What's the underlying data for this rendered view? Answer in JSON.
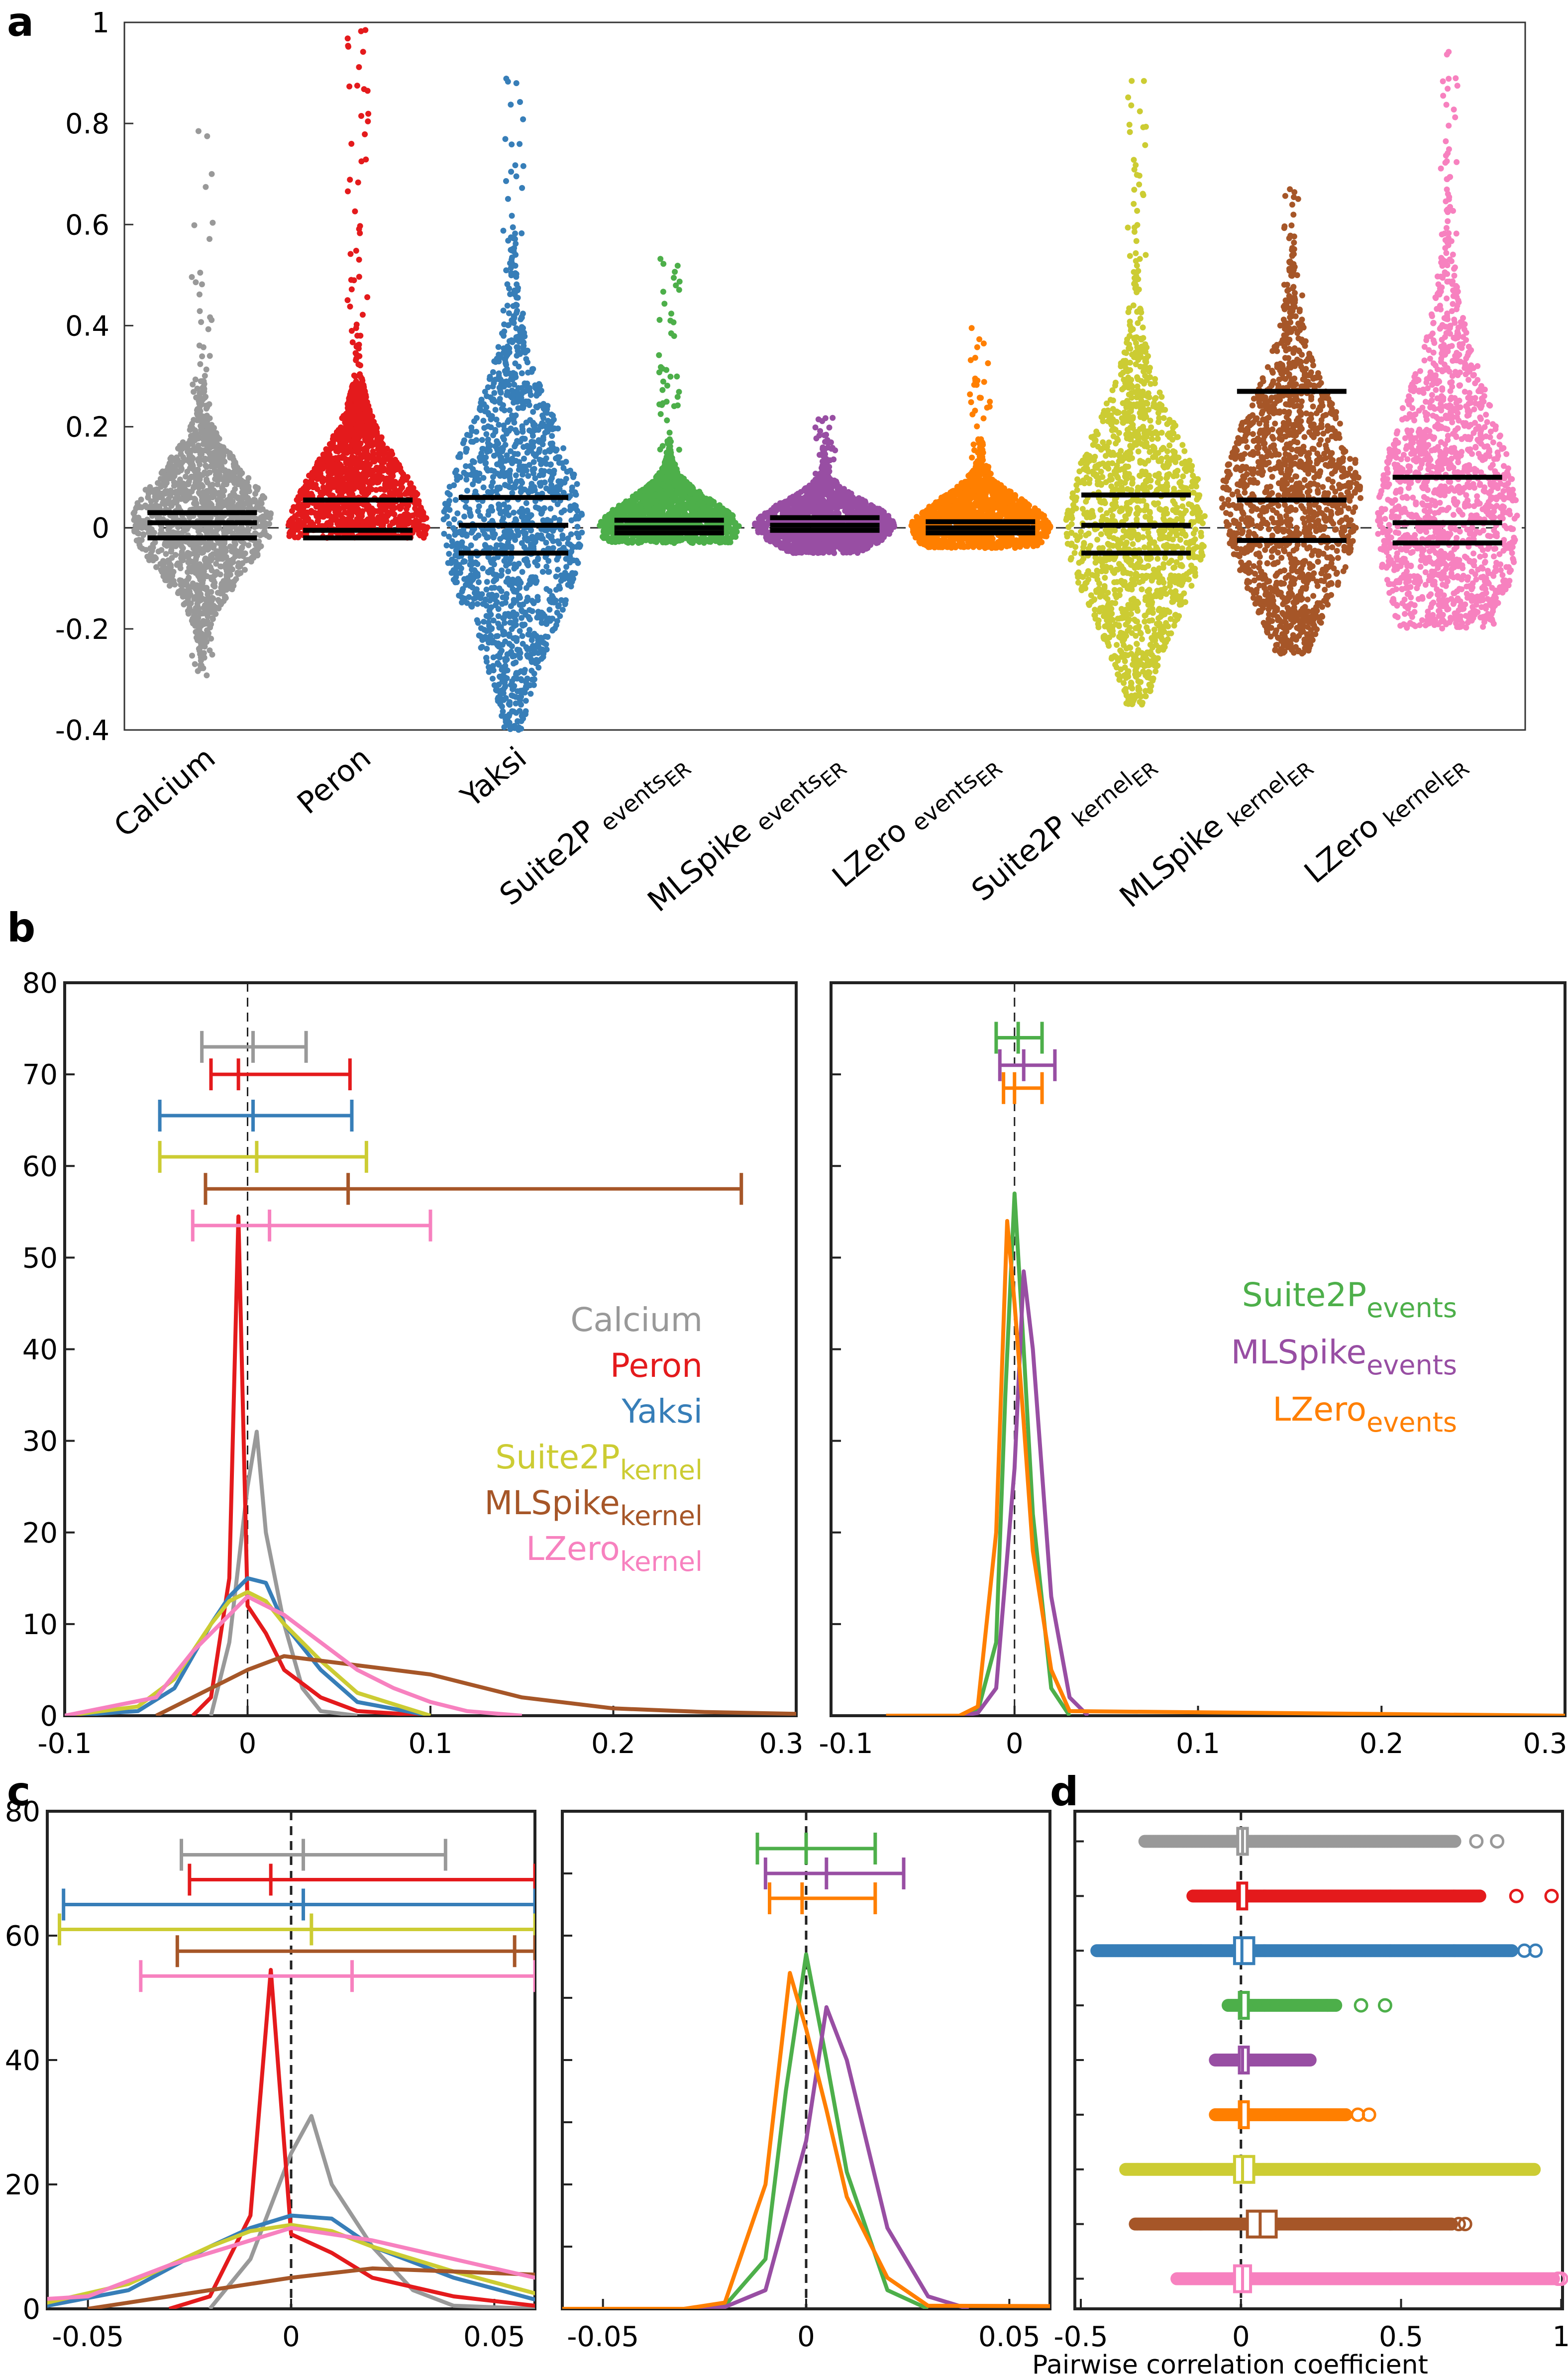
{
  "figure": {
    "panel_labels": [
      "a",
      "b",
      "c",
      "d"
    ],
    "xlabel_d": "Pairwise correlation coefficient"
  },
  "colors": {
    "Calcium": "#999999",
    "Peron": "#e41a1c",
    "Yaksi": "#377eb8",
    "Suite2P_events": "#4daf4a",
    "MLSpike_events": "#984ea3",
    "LZero_events": "#ff7f00",
    "Suite2P_kernel": "#cccc33",
    "MLSpike_kernel": "#a65628",
    "LZero_kernel": "#f781bf"
  },
  "chart_data": [
    {
      "panel": "a",
      "type": "scatter",
      "title": "",
      "xlabel": "",
      "ylabel": "",
      "ylim": [
        -0.4,
        1
      ],
      "yticks": [
        -0.4,
        -0.2,
        0,
        0.2,
        0.4,
        0.6,
        0.8,
        1
      ],
      "yticklabels": [
        "-0.4",
        "-0.2",
        "0",
        "0.2",
        "0.4",
        "0.6",
        "0.8",
        "1"
      ],
      "categories": [
        {
          "key": "Calcium",
          "base": "Calcium",
          "sub": "",
          "min": -0.3,
          "max": 0.8,
          "spread": 0.11,
          "p25": -0.02,
          "median": 0.01,
          "p75": 0.03
        },
        {
          "key": "Peron",
          "base": "Peron",
          "sub": "",
          "min": -0.02,
          "max": 1.0,
          "spread": 0.14,
          "p25": -0.02,
          "median": -0.005,
          "p75": 0.055
        },
        {
          "key": "Yaksi",
          "base": "Yaksi",
          "sub": "",
          "min": -0.4,
          "max": 0.9,
          "spread": 0.22,
          "p25": -0.05,
          "median": 0.005,
          "p75": 0.06
        },
        {
          "key": "Suite2P_events",
          "base": "Suite2P ",
          "sub": "events",
          "sub2": "ER",
          "min": -0.03,
          "max": 0.55,
          "spread": 0.06,
          "p25": -0.01,
          "median": 0.0,
          "p75": 0.015
        },
        {
          "key": "MLSpike_events",
          "base": "MLSpike ",
          "sub": "events",
          "sub2": "ER",
          "min": -0.05,
          "max": 0.22,
          "spread": 0.05,
          "p25": -0.005,
          "median": 0.005,
          "p75": 0.02
        },
        {
          "key": "LZero_events",
          "base": "LZero ",
          "sub": "events",
          "sub2": "ER",
          "min": -0.04,
          "max": 0.4,
          "spread": 0.06,
          "p25": -0.01,
          "median": 0.0,
          "p75": 0.012
        },
        {
          "key": "Suite2P_kernel",
          "base": "Suite2P ",
          "sub": "kernel",
          "sub2": "ER",
          "min": -0.35,
          "max": 0.92,
          "spread": 0.2,
          "p25": -0.05,
          "median": 0.005,
          "p75": 0.065
        },
        {
          "key": "MLSpike_kernel",
          "base": "MLSpike ",
          "sub": "kernel",
          "sub2": "ER",
          "min": -0.25,
          "max": 0.7,
          "spread": 0.2,
          "p25": -0.025,
          "median": 0.055,
          "p75": 0.27
        },
        {
          "key": "LZero_kernel",
          "base": "LZero ",
          "sub": "kernel",
          "sub2": "ER",
          "min": -0.2,
          "max": 1.0,
          "spread": 0.26,
          "p25": -0.03,
          "median": 0.01,
          "p75": 0.1
        }
      ],
      "reference_line_y": 0
    },
    {
      "panel": "b-left",
      "type": "line",
      "xlim": [
        -0.1,
        0.3
      ],
      "ylim": [
        0,
        80
      ],
      "xticks": [
        -0.1,
        0,
        0.1,
        0.2,
        0.3
      ],
      "xticklabels": [
        "-0.1",
        "0",
        "0.1",
        "0.2",
        "0.3"
      ],
      "yticks": [
        0,
        10,
        20,
        30,
        40,
        50,
        60,
        70,
        80
      ],
      "yticklabels": [
        "0",
        "10",
        "20",
        "30",
        "40",
        "50",
        "60",
        "70",
        "80"
      ],
      "reference_line_x": 0,
      "legend": [
        {
          "key": "Calcium",
          "text": "Calcium",
          "sub": ""
        },
        {
          "key": "Peron",
          "text": "Peron",
          "sub": ""
        },
        {
          "key": "Yaksi",
          "text": "Yaksi",
          "sub": ""
        },
        {
          "key": "Suite2P_kernel",
          "text": "Suite2P",
          "sub": "kernel"
        },
        {
          "key": "MLSpike_kernel",
          "text": "MLSpike",
          "sub": "kernel"
        },
        {
          "key": "LZero_kernel",
          "text": "LZero",
          "sub": "kernel"
        }
      ],
      "series": [
        {
          "key": "Calcium",
          "x": [
            -0.02,
            -0.01,
            0,
            0.005,
            0.01,
            0.02,
            0.03,
            0.04,
            0.06
          ],
          "y": [
            0,
            8,
            25,
            31,
            20,
            10,
            3,
            0.5,
            0
          ]
        },
        {
          "key": "Peron",
          "x": [
            -0.03,
            -0.02,
            -0.01,
            -0.005,
            0,
            0.01,
            0.02,
            0.04,
            0.06,
            0.1
          ],
          "y": [
            0,
            2,
            15,
            54.5,
            12,
            9,
            5,
            2,
            0.5,
            0
          ]
        },
        {
          "key": "Yaksi",
          "x": [
            -0.1,
            -0.06,
            -0.04,
            -0.02,
            -0.01,
            0,
            0.01,
            0.02,
            0.04,
            0.06,
            0.1
          ],
          "y": [
            0,
            0.5,
            3,
            10,
            13,
            15,
            14.5,
            10,
            5,
            1.5,
            0
          ]
        },
        {
          "key": "Suite2P_kernel",
          "x": [
            -0.1,
            -0.06,
            -0.04,
            -0.02,
            -0.01,
            0,
            0.01,
            0.02,
            0.04,
            0.06,
            0.1
          ],
          "y": [
            0,
            1,
            4,
            10,
            12.5,
            13.5,
            12.5,
            10,
            6,
            2.5,
            0
          ]
        },
        {
          "key": "MLSpike_kernel",
          "x": [
            -0.05,
            -0.02,
            0,
            0.02,
            0.04,
            0.06,
            0.08,
            0.1,
            0.12,
            0.15,
            0.2,
            0.25,
            0.3
          ],
          "y": [
            0,
            3,
            5,
            6.5,
            6,
            5.5,
            5,
            4.5,
            3.5,
            2,
            0.8,
            0.4,
            0.2
          ]
        },
        {
          "key": "LZero_kernel",
          "x": [
            -0.1,
            -0.05,
            -0.03,
            -0.01,
            0,
            0.01,
            0.02,
            0.04,
            0.06,
            0.08,
            0.1,
            0.12,
            0.15
          ],
          "y": [
            0,
            2,
            7,
            11,
            13,
            12,
            11,
            8,
            5,
            3,
            1.5,
            0.5,
            0
          ]
        }
      ],
      "error_bars": [
        {
          "key": "Calcium",
          "row": 73,
          "low": -0.025,
          "mid": 0.003,
          "high": 0.032
        },
        {
          "key": "Peron",
          "row": 70,
          "low": -0.02,
          "mid": -0.005,
          "high": 0.056
        },
        {
          "key": "Yaksi",
          "row": 65.5,
          "low": -0.048,
          "mid": 0.003,
          "high": 0.057
        },
        {
          "key": "Suite2P_kernel",
          "row": 61,
          "low": -0.048,
          "mid": 0.005,
          "high": 0.065
        },
        {
          "key": "MLSpike_kernel",
          "row": 57.5,
          "low": -0.023,
          "mid": 0.055,
          "high": 0.27
        },
        {
          "key": "LZero_kernel",
          "row": 53.5,
          "low": -0.03,
          "mid": 0.012,
          "high": 0.1
        }
      ]
    },
    {
      "panel": "b-right",
      "type": "line",
      "xlim": [
        -0.1,
        0.3
      ],
      "ylim": [
        0,
        80
      ],
      "xticks": [
        -0.1,
        0,
        0.1,
        0.2,
        0.3
      ],
      "xticklabels": [
        "-0.1",
        "0",
        "0.1",
        "0.2",
        "0.3"
      ],
      "reference_line_x": 0,
      "legend": [
        {
          "key": "Suite2P_events",
          "text": "Suite2P",
          "sub": "events"
        },
        {
          "key": "MLSpike_events",
          "text": "MLSpike",
          "sub": "events"
        },
        {
          "key": "LZero_events",
          "text": "LZero",
          "sub": "events"
        }
      ],
      "series": [
        {
          "key": "Suite2P_events",
          "x": [
            -0.03,
            -0.02,
            -0.01,
            -0.005,
            0,
            0.005,
            0.01,
            0.02,
            0.03
          ],
          "y": [
            0,
            0.5,
            8,
            35,
            57,
            40,
            22,
            3,
            0
          ]
        },
        {
          "key": "MLSpike_events",
          "x": [
            -0.03,
            -0.02,
            -0.01,
            0,
            0.005,
            0.01,
            0.02,
            0.03,
            0.04
          ],
          "y": [
            0,
            0.3,
            3,
            27,
            48.5,
            40,
            13,
            2,
            0
          ]
        },
        {
          "key": "LZero_events",
          "x": [
            -0.07,
            -0.03,
            -0.02,
            -0.01,
            -0.004,
            0,
            0.005,
            0.01,
            0.02,
            0.03,
            0.3
          ],
          "y": [
            0,
            0,
            1,
            20,
            54,
            45,
            32,
            18,
            5,
            0.5,
            0
          ]
        }
      ],
      "error_bars": [
        {
          "key": "Suite2P_events",
          "row": 74,
          "low": -0.01,
          "mid": 0.002,
          "high": 0.015
        },
        {
          "key": "MLSpike_events",
          "row": 71,
          "low": -0.008,
          "mid": 0.005,
          "high": 0.022
        },
        {
          "key": "LZero_events",
          "row": 68.5,
          "low": -0.006,
          "mid": 0.0,
          "high": 0.015
        }
      ]
    },
    {
      "panel": "c-left",
      "type": "line",
      "xlim": [
        -0.06,
        0.06
      ],
      "ylim": [
        0,
        80
      ],
      "xticks": [
        -0.05,
        0,
        0.05
      ],
      "xticklabels": [
        "-0.05",
        "0",
        "0.05"
      ],
      "yticks": [
        0,
        20,
        40,
        60,
        80
      ],
      "yticklabels": [
        "0",
        "20",
        "40",
        "60",
        "80"
      ],
      "reference_line_x": 0,
      "series_from": "b-left",
      "error_bars": [
        {
          "key": "Calcium",
          "row": 73,
          "low": -0.027,
          "mid": 0.003,
          "high": 0.038
        },
        {
          "key": "Peron",
          "row": 69,
          "low": -0.025,
          "mid": -0.005,
          "high": 0.06
        },
        {
          "key": "Yaksi",
          "row": 65,
          "low": -0.056,
          "mid": 0.003,
          "high": 0.06
        },
        {
          "key": "Suite2P_kernel",
          "row": 61,
          "low": -0.057,
          "mid": 0.005,
          "high": 0.06
        },
        {
          "key": "MLSpike_kernel",
          "row": 57.5,
          "low": -0.028,
          "mid": 0.055,
          "high": 0.06
        },
        {
          "key": "LZero_kernel",
          "row": 53.5,
          "low": -0.037,
          "mid": 0.015,
          "high": 0.06
        }
      ]
    },
    {
      "panel": "c-right",
      "type": "line",
      "xlim": [
        -0.06,
        0.06
      ],
      "ylim": [
        0,
        80
      ],
      "xticks": [
        -0.05,
        0,
        0.05
      ],
      "xticklabels": [
        "-0.05",
        "0",
        "0.05"
      ],
      "reference_line_x": 0,
      "series_from": "b-right",
      "error_bars": [
        {
          "key": "Suite2P_events",
          "row": 74,
          "low": -0.012,
          "mid": 0.0,
          "high": 0.017
        },
        {
          "key": "MLSpike_events",
          "row": 70,
          "low": -0.01,
          "mid": 0.005,
          "high": 0.024
        },
        {
          "key": "LZero_events",
          "row": 66,
          "low": -0.009,
          "mid": -0.001,
          "high": 0.017
        }
      ]
    },
    {
      "panel": "d",
      "type": "box",
      "xlim": [
        -0.5,
        1.0
      ],
      "xticks": [
        -0.5,
        0,
        0.5,
        1
      ],
      "xticklabels": [
        "-0.5",
        "0",
        "0.5",
        "1"
      ],
      "xlabel": "Pairwise correlation coefficient",
      "reference_line_x": 0,
      "rows": [
        {
          "key": "Calcium",
          "wlo": -0.3,
          "q1": -0.01,
          "med": 0.005,
          "q3": 0.02,
          "whi": 0.67,
          "omax": 0.8
        },
        {
          "key": "Peron",
          "wlo": -0.15,
          "q1": -0.01,
          "med": -0.005,
          "q3": 0.01,
          "whi": 0.75,
          "omax": 0.97
        },
        {
          "key": "Yaksi",
          "wlo": -0.45,
          "q1": -0.02,
          "med": 0.003,
          "q3": 0.04,
          "whi": 0.85,
          "omax": 0.92
        },
        {
          "key": "Suite2P_events",
          "wlo": -0.04,
          "q1": -0.005,
          "med": 0.0,
          "q3": 0.01,
          "whi": 0.3,
          "omax": 0.45
        },
        {
          "key": "MLSpike_events",
          "wlo": -0.08,
          "q1": -0.005,
          "med": 0.005,
          "q3": 0.015,
          "whi": 0.22,
          "omax": 0.22
        },
        {
          "key": "LZero_events",
          "wlo": -0.08,
          "q1": -0.005,
          "med": 0.0,
          "q3": 0.01,
          "whi": 0.33,
          "omax": 0.4
        },
        {
          "key": "Suite2P_kernel",
          "wlo": -0.36,
          "q1": -0.02,
          "med": 0.005,
          "q3": 0.04,
          "whi": 0.92,
          "omax": 0.92
        },
        {
          "key": "MLSpike_kernel",
          "wlo": -0.33,
          "q1": 0.02,
          "med": 0.06,
          "q3": 0.11,
          "whi": 0.66,
          "omax": 0.7
        },
        {
          "key": "LZero_kernel",
          "wlo": -0.2,
          "q1": -0.02,
          "med": 0.005,
          "q3": 0.03,
          "whi": 0.98,
          "omax": 1.0
        }
      ]
    }
  ]
}
